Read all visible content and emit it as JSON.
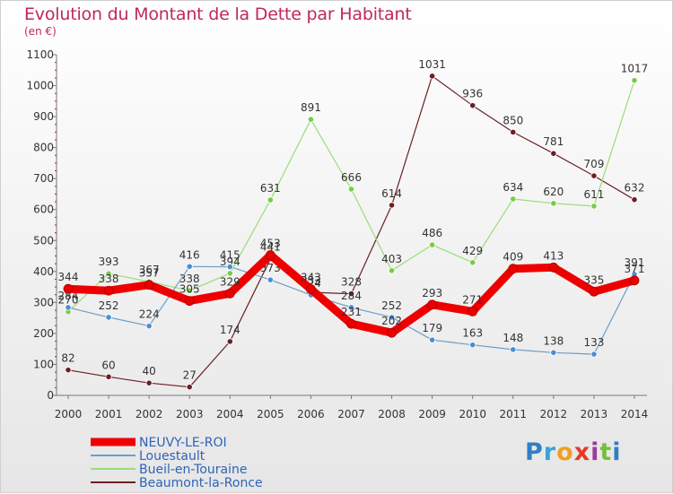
{
  "title": "Evolution du Montant de la Dette par Habitant",
  "unit": "(en €)",
  "logo": "Proxiti",
  "chart_data": {
    "type": "line",
    "x": [
      "2000",
      "2001",
      "2002",
      "2003",
      "2004",
      "2005",
      "2006",
      "2007",
      "2008",
      "2009",
      "2010",
      "2011",
      "2012",
      "2013",
      "2014"
    ],
    "ylim": [
      0,
      1100
    ],
    "yticks": [
      0,
      100,
      200,
      300,
      400,
      500,
      600,
      700,
      800,
      900,
      1000,
      1100
    ],
    "grid": false,
    "legend_position": "bottom-left",
    "series": [
      {
        "name": "Beaumont-la-Ronce",
        "color": "#6b1f24",
        "width": 1.2,
        "marker_fill": "#6b1f24",
        "values": [
          82,
          60,
          40,
          27,
          174,
          441,
          333,
          328,
          614,
          1031,
          936,
          850,
          781,
          709,
          632
        ]
      },
      {
        "name": "Bueil-en-Touraine",
        "color": "#99dd77",
        "width": 1.2,
        "marker_fill": "#77cc44",
        "values": [
          270,
          393,
          367,
          338,
          394,
          631,
          891,
          666,
          403,
          486,
          429,
          634,
          620,
          611,
          1017
        ]
      },
      {
        "name": "Louestault",
        "color": "#6f9cc6",
        "width": 1.2,
        "marker_fill": "#4b8ed3",
        "values": [
          284,
          252,
          224,
          416,
          415,
          373,
          324,
          284,
          252,
          179,
          163,
          148,
          138,
          133,
          391
        ]
      },
      {
        "name": "NEUVY-LE-ROI",
        "color": "#ee0000",
        "width": 9,
        "marker_fill": "#e80000",
        "values": [
          344,
          338,
          357,
          305,
          329,
          453,
          343,
          231,
          202,
          293,
          271,
          409,
          413,
          335,
          371
        ]
      }
    ]
  }
}
